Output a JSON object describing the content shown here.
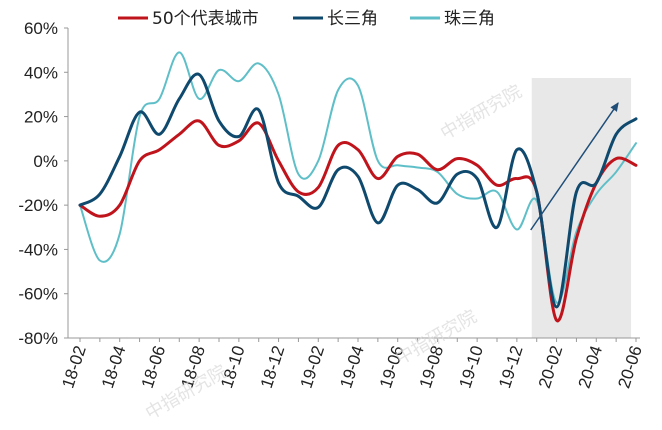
{
  "chart_data": {
    "type": "line",
    "title": "",
    "xlabel": "",
    "ylabel": "",
    "ylim": [
      -80,
      60
    ],
    "yticks": [
      60,
      40,
      20,
      0,
      -20,
      -40,
      -60,
      -80
    ],
    "ytick_labels": [
      "60%",
      "40%",
      "20%",
      "0%",
      "-20%",
      "-40%",
      "-60%",
      "-80%"
    ],
    "xtick_labels": [
      "18-02",
      "18-04",
      "18-06",
      "18-08",
      "18-10",
      "18-12",
      "19-02",
      "19-04",
      "19-06",
      "19-08",
      "19-10",
      "19-12",
      "20-02",
      "20-04",
      "20-06"
    ],
    "months": [
      "18-02",
      "18-03",
      "18-04",
      "18-05",
      "18-06",
      "18-07",
      "18-08",
      "18-09",
      "18-10",
      "18-11",
      "18-12",
      "19-01",
      "19-02",
      "19-03",
      "19-04",
      "19-05",
      "19-06",
      "19-07",
      "19-08",
      "19-09",
      "19-10",
      "19-11",
      "19-12",
      "20-01",
      "20-02",
      "20-03",
      "20-04",
      "20-05",
      "20-06"
    ],
    "legend_position": "top",
    "highlight_region": {
      "from": "20-01",
      "to": "20-06",
      "color": "#e8e8e8"
    },
    "series": [
      {
        "name": "50个代表城市",
        "color": "#c0141c",
        "values": [
          -20,
          -25,
          -20,
          0,
          5,
          12,
          18,
          7,
          9,
          17,
          0,
          -14,
          -12,
          7,
          5,
          -8,
          2,
          3,
          -4,
          1,
          -2,
          -11,
          -8,
          -14,
          -72,
          -35,
          -10,
          1,
          -2
        ]
      },
      {
        "name": "长三角",
        "color": "#0f4a6e",
        "values": [
          -20,
          -15,
          2,
          22,
          12,
          28,
          39,
          18,
          11,
          23,
          -10,
          -16,
          -21,
          -4,
          -7,
          -28,
          -11,
          -13,
          -19,
          -6,
          -8,
          -30,
          5,
          -14,
          -66,
          -14,
          -10,
          12,
          19
        ]
      },
      {
        "name": "珠三角",
        "color": "#5fbfc8",
        "values": [
          -20,
          -45,
          -33,
          20,
          28,
          49,
          28,
          41,
          36,
          44,
          30,
          -6,
          0,
          32,
          34,
          0,
          -2,
          -3,
          -5,
          -15,
          -17,
          -14,
          -31,
          -18,
          -64,
          -32,
          -15,
          -5,
          8
        ]
      }
    ],
    "annotation_arrow": {
      "from": "20-01",
      "to": "20-05",
      "color": "#1f4e79"
    }
  },
  "watermarks": [
    "中指研究院",
    "中指研究院",
    "中指研究院"
  ]
}
